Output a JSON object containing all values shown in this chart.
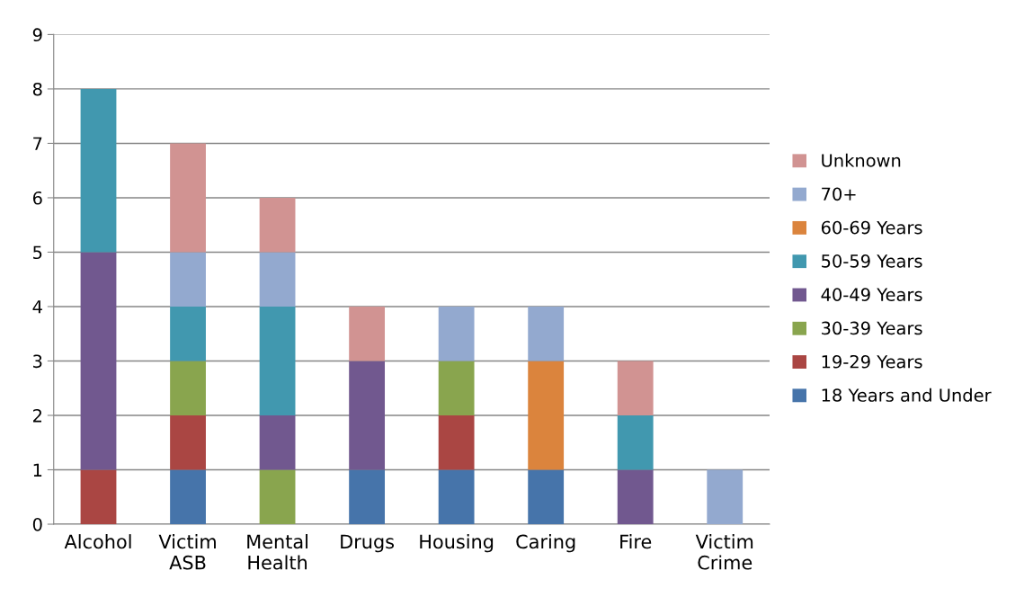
{
  "chart_data": {
    "type": "bar",
    "stacked": true,
    "categories": [
      "Alcohol",
      "Victim\nASB",
      "Mental\nHealth",
      "Drugs",
      "Housing",
      "Caring",
      "Fire",
      "Victim\nCrime"
    ],
    "series": [
      {
        "name": "18 Years and Under",
        "color": "#4674aa",
        "values": [
          0,
          1,
          0,
          1,
          1,
          1,
          0,
          0
        ]
      },
      {
        "name": "19-29 Years",
        "color": "#aa4643",
        "values": [
          1,
          1,
          0,
          0,
          1,
          0,
          0,
          0
        ]
      },
      {
        "name": "30-39 Years",
        "color": "#89a54e",
        "values": [
          0,
          1,
          1,
          0,
          1,
          0,
          0,
          0
        ]
      },
      {
        "name": "40-49 Years",
        "color": "#71588f",
        "values": [
          4,
          0,
          1,
          2,
          0,
          0,
          1,
          0
        ]
      },
      {
        "name": "50-59 Years",
        "color": "#4198af",
        "values": [
          3,
          1,
          2,
          0,
          0,
          0,
          1,
          0
        ]
      },
      {
        "name": "60-69 Years",
        "color": "#db843d",
        "values": [
          0,
          0,
          0,
          0,
          0,
          2,
          0,
          0
        ]
      },
      {
        "name": "70+",
        "color": "#93a9cf",
        "values": [
          0,
          1,
          1,
          0,
          1,
          1,
          0,
          1
        ]
      },
      {
        "name": "Unknown",
        "color": "#d19392",
        "values": [
          0,
          2,
          1,
          1,
          0,
          0,
          1,
          0
        ]
      }
    ],
    "ylim": [
      0,
      9
    ],
    "yticks": [
      0,
      1,
      2,
      3,
      4,
      5,
      6,
      7,
      8,
      9
    ],
    "grid": "y",
    "legend": "right"
  }
}
